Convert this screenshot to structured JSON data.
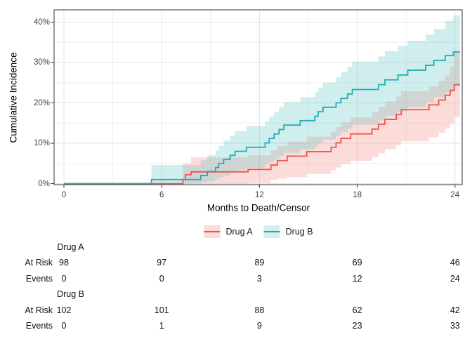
{
  "figure": {
    "y_axis_title": "Cumulative Incidence",
    "x_axis_title": "Months to Death/Censor"
  },
  "legend": {
    "items": [
      {
        "label": "Drug A",
        "line_color": "#E8564E",
        "key_fill": "#FBDCD9"
      },
      {
        "label": "Drug B",
        "line_color": "#1FADB2",
        "key_fill": "#D3EFEF"
      }
    ]
  },
  "chart_data": {
    "type": "line",
    "style": "step-hv-cumulative-incidence-with-confidence-bands",
    "title": "",
    "xlabel": "Months to Death/Censor",
    "ylabel": "Cumulative Incidence",
    "xlim": [
      0,
      24
    ],
    "ylim": [
      0,
      43
    ],
    "grid": true,
    "legend_position": "bottom",
    "x_ticks": {
      "values": [
        0,
        6,
        12,
        18,
        24
      ],
      "labels": [
        "0",
        "6",
        "12",
        "18",
        "24"
      ]
    },
    "y_ticks": {
      "values": [
        0,
        10,
        20,
        30,
        40
      ],
      "labels": [
        "0%",
        "10%",
        "20%",
        "30%",
        "40%"
      ]
    },
    "x_minor": [
      3,
      9,
      15,
      21
    ],
    "y_minor": [
      5,
      15,
      25,
      35
    ],
    "end_month": 24.3,
    "series": [
      {
        "name": "Drug A",
        "line_color": "#E8564E",
        "band_fill": "rgba(244,130,120,0.28)",
        "steps": [
          [
            0,
            0
          ],
          [
            7.3,
            1.0
          ],
          [
            7.45,
            2.2
          ],
          [
            7.8,
            2.9
          ],
          [
            11.3,
            3.5
          ],
          [
            12.7,
            4.6
          ],
          [
            13.1,
            5.7
          ],
          [
            13.7,
            6.8
          ],
          [
            14.9,
            7.9
          ],
          [
            16.4,
            9.0
          ],
          [
            16.7,
            10.1
          ],
          [
            17.0,
            11.2
          ],
          [
            17.6,
            12.3
          ],
          [
            18.9,
            13.5
          ],
          [
            19.3,
            14.7
          ],
          [
            19.7,
            15.9
          ],
          [
            20.4,
            17.1
          ],
          [
            20.7,
            18.3
          ],
          [
            22.4,
            19.5
          ],
          [
            23.0,
            20.7
          ],
          [
            23.4,
            21.9
          ],
          [
            23.7,
            23.1
          ],
          [
            23.95,
            24.5
          ]
        ],
        "band": [
          [
            7.3,
            0,
            5.0
          ],
          [
            7.8,
            0,
            6.5
          ],
          [
            11.3,
            0.2,
            7.0
          ],
          [
            12.7,
            0.9,
            8.2
          ],
          [
            13.1,
            1.2,
            9.3
          ],
          [
            13.7,
            1.6,
            10.4
          ],
          [
            14.9,
            2.4,
            11.6
          ],
          [
            16.4,
            3.3,
            12.8
          ],
          [
            16.7,
            4.0,
            14.0
          ],
          [
            17.0,
            4.8,
            15.2
          ],
          [
            17.6,
            5.6,
            16.4
          ],
          [
            18.9,
            6.6,
            17.7
          ],
          [
            19.3,
            7.5,
            19.0
          ],
          [
            19.7,
            8.5,
            20.3
          ],
          [
            20.4,
            9.5,
            21.6
          ],
          [
            20.7,
            10.5,
            22.9
          ],
          [
            22.4,
            11.5,
            24.2
          ],
          [
            23.0,
            12.6,
            25.5
          ],
          [
            23.4,
            13.7,
            26.8
          ],
          [
            23.7,
            14.9,
            29.0
          ],
          [
            23.95,
            16.5,
            32.5
          ]
        ]
      },
      {
        "name": "Drug B",
        "line_color": "#1FADB2",
        "band_fill": "rgba(100,200,200,0.30)",
        "steps": [
          [
            0,
            0
          ],
          [
            5.37,
            1.0
          ],
          [
            8.4,
            2.0
          ],
          [
            8.8,
            3.0
          ],
          [
            9.3,
            4.0
          ],
          [
            9.5,
            5.0
          ],
          [
            9.8,
            6.0
          ],
          [
            10.2,
            7.0
          ],
          [
            10.5,
            8.0
          ],
          [
            11.2,
            9.0
          ],
          [
            12.35,
            10.1
          ],
          [
            12.6,
            11.2
          ],
          [
            12.9,
            12.3
          ],
          [
            13.2,
            13.4
          ],
          [
            13.5,
            14.5
          ],
          [
            14.5,
            15.6
          ],
          [
            15.4,
            16.7
          ],
          [
            15.6,
            17.8
          ],
          [
            15.9,
            18.9
          ],
          [
            16.7,
            20.0
          ],
          [
            17.0,
            21.1
          ],
          [
            17.4,
            22.2
          ],
          [
            17.7,
            23.3
          ],
          [
            19.3,
            24.5
          ],
          [
            19.7,
            25.7
          ],
          [
            20.5,
            26.9
          ],
          [
            21.1,
            28.1
          ],
          [
            22.2,
            29.3
          ],
          [
            22.7,
            30.5
          ],
          [
            23.4,
            31.7
          ],
          [
            23.9,
            32.6
          ]
        ],
        "band": [
          [
            5.37,
            0,
            4.6
          ],
          [
            8.4,
            0.3,
            5.8
          ],
          [
            8.8,
            0.6,
            7.0
          ],
          [
            9.3,
            1.0,
            8.2
          ],
          [
            9.5,
            1.5,
            9.4
          ],
          [
            9.8,
            2.0,
            10.6
          ],
          [
            10.2,
            2.6,
            11.8
          ],
          [
            10.5,
            3.2,
            13.0
          ],
          [
            11.2,
            3.9,
            14.2
          ],
          [
            12.35,
            4.7,
            15.4
          ],
          [
            12.6,
            5.3,
            16.6
          ],
          [
            12.9,
            6.0,
            17.8
          ],
          [
            13.2,
            6.8,
            19.0
          ],
          [
            13.5,
            7.6,
            20.2
          ],
          [
            14.5,
            8.4,
            21.4
          ],
          [
            15.4,
            9.2,
            22.6
          ],
          [
            15.6,
            10.0,
            23.8
          ],
          [
            15.9,
            10.9,
            25.0
          ],
          [
            16.7,
            11.8,
            26.3
          ],
          [
            17.0,
            12.7,
            27.6
          ],
          [
            17.4,
            13.6,
            28.9
          ],
          [
            17.7,
            14.6,
            30.2
          ],
          [
            19.3,
            15.7,
            31.5
          ],
          [
            19.7,
            16.8,
            32.8
          ],
          [
            20.5,
            17.9,
            34.1
          ],
          [
            21.1,
            19.0,
            35.4
          ],
          [
            22.2,
            20.2,
            36.9
          ],
          [
            22.7,
            21.4,
            38.3
          ],
          [
            23.4,
            22.6,
            40.3
          ],
          [
            23.9,
            24.0,
            41.7
          ]
        ]
      }
    ]
  },
  "risk_table": {
    "time_points": [
      0,
      6,
      12,
      18,
      24
    ],
    "row_labels": {
      "at_risk": "At Risk",
      "events": "Events"
    },
    "groups": [
      {
        "name": "Drug A",
        "at_risk": [
          "98",
          "97",
          "89",
          "69",
          "46"
        ],
        "events": [
          "0",
          "0",
          "3",
          "12",
          "24"
        ]
      },
      {
        "name": "Drug B",
        "at_risk": [
          "102",
          "101",
          "88",
          "62",
          "42"
        ],
        "events": [
          "0",
          "1",
          "9",
          "23",
          "33"
        ]
      }
    ]
  }
}
